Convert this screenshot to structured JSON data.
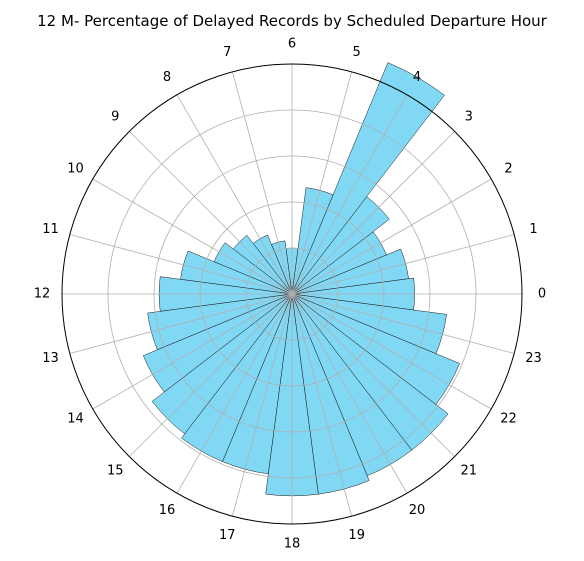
{
  "chart_data": {
    "type": "polar-bar",
    "title": "12 M- Percentage of Delayed Records by Scheduled Departure Hour",
    "categories": [
      "0",
      "1",
      "2",
      "3",
      "4",
      "5",
      "6",
      "7",
      "8",
      "9",
      "10",
      "11",
      "12",
      "13",
      "14",
      "15",
      "16",
      "17",
      "18",
      "19",
      "20",
      "21",
      "22",
      "23"
    ],
    "values": [
      2.4,
      2.3,
      2.0,
      2.4,
      4.9,
      2.1,
      0.9,
      1.05,
      1.25,
      1.45,
      1.65,
      2.2,
      2.6,
      2.85,
      3.15,
      3.45,
      3.55,
      3.55,
      3.95,
      3.95,
      3.85,
      3.85,
      3.55,
      3.05
    ],
    "rlim": [
      0,
      4.5
    ],
    "grid": true,
    "colors": {
      "bar_fill": "#80d8f5",
      "bar_edge": "#1a1a1a",
      "grid": "#b0b0b0"
    }
  }
}
